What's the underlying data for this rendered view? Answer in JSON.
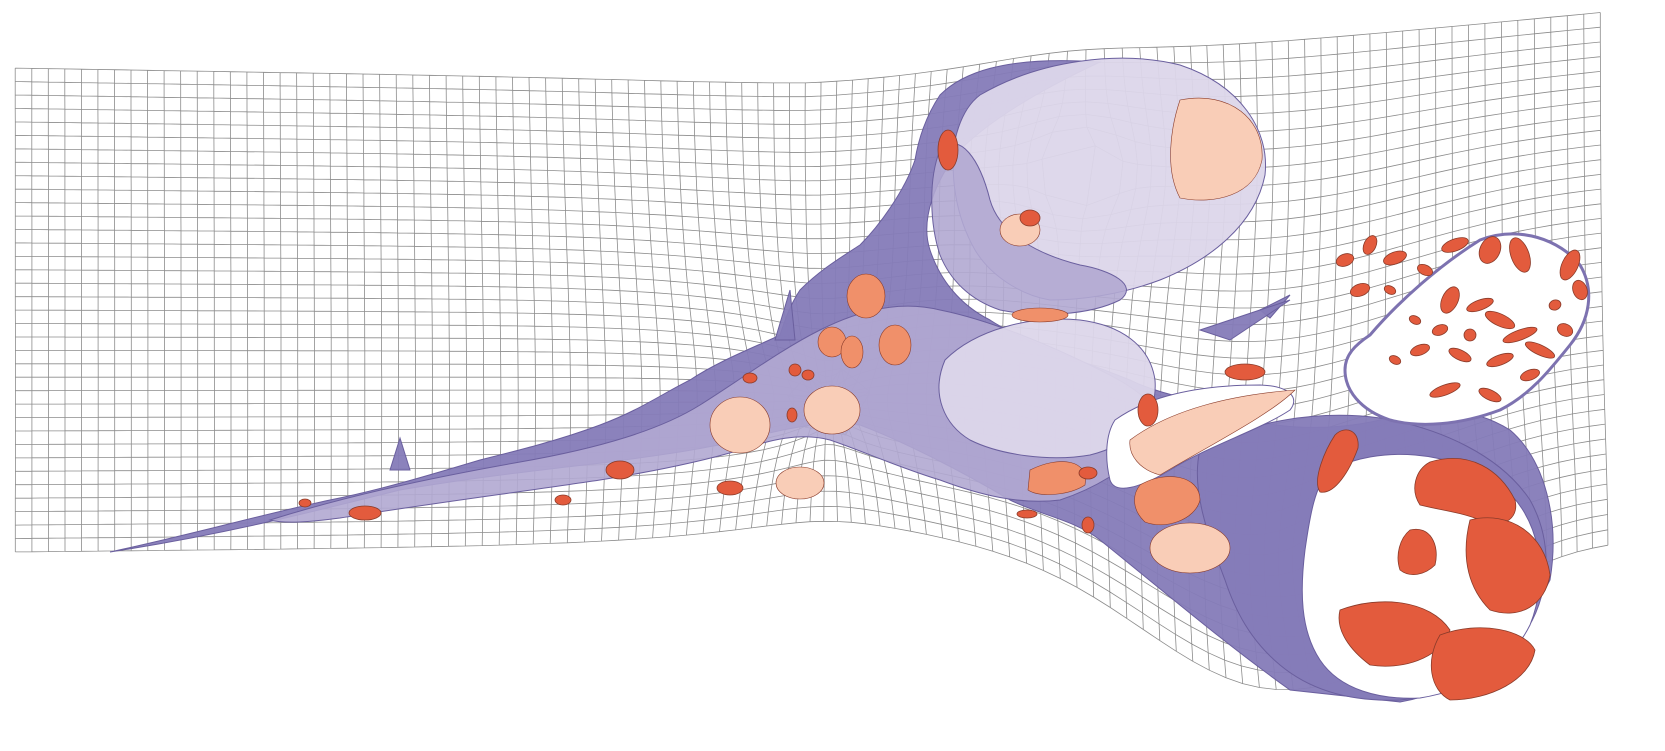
{
  "figure": {
    "colors": {
      "background": "#ffffff",
      "grid": "#8c8c8c",
      "tissue_light": "#dcd6ea",
      "tissue_mid": "#b1a8d2",
      "tissue_dark": "#857bb8",
      "tissue_outline": "#6a5f9e",
      "cell_pale": "#f9cdb7",
      "cell_salmon": "#f0906a",
      "cell_red": "#e35b3d",
      "cell_outline": "#8a3b2a"
    },
    "grid": {
      "visible": true
    }
  }
}
